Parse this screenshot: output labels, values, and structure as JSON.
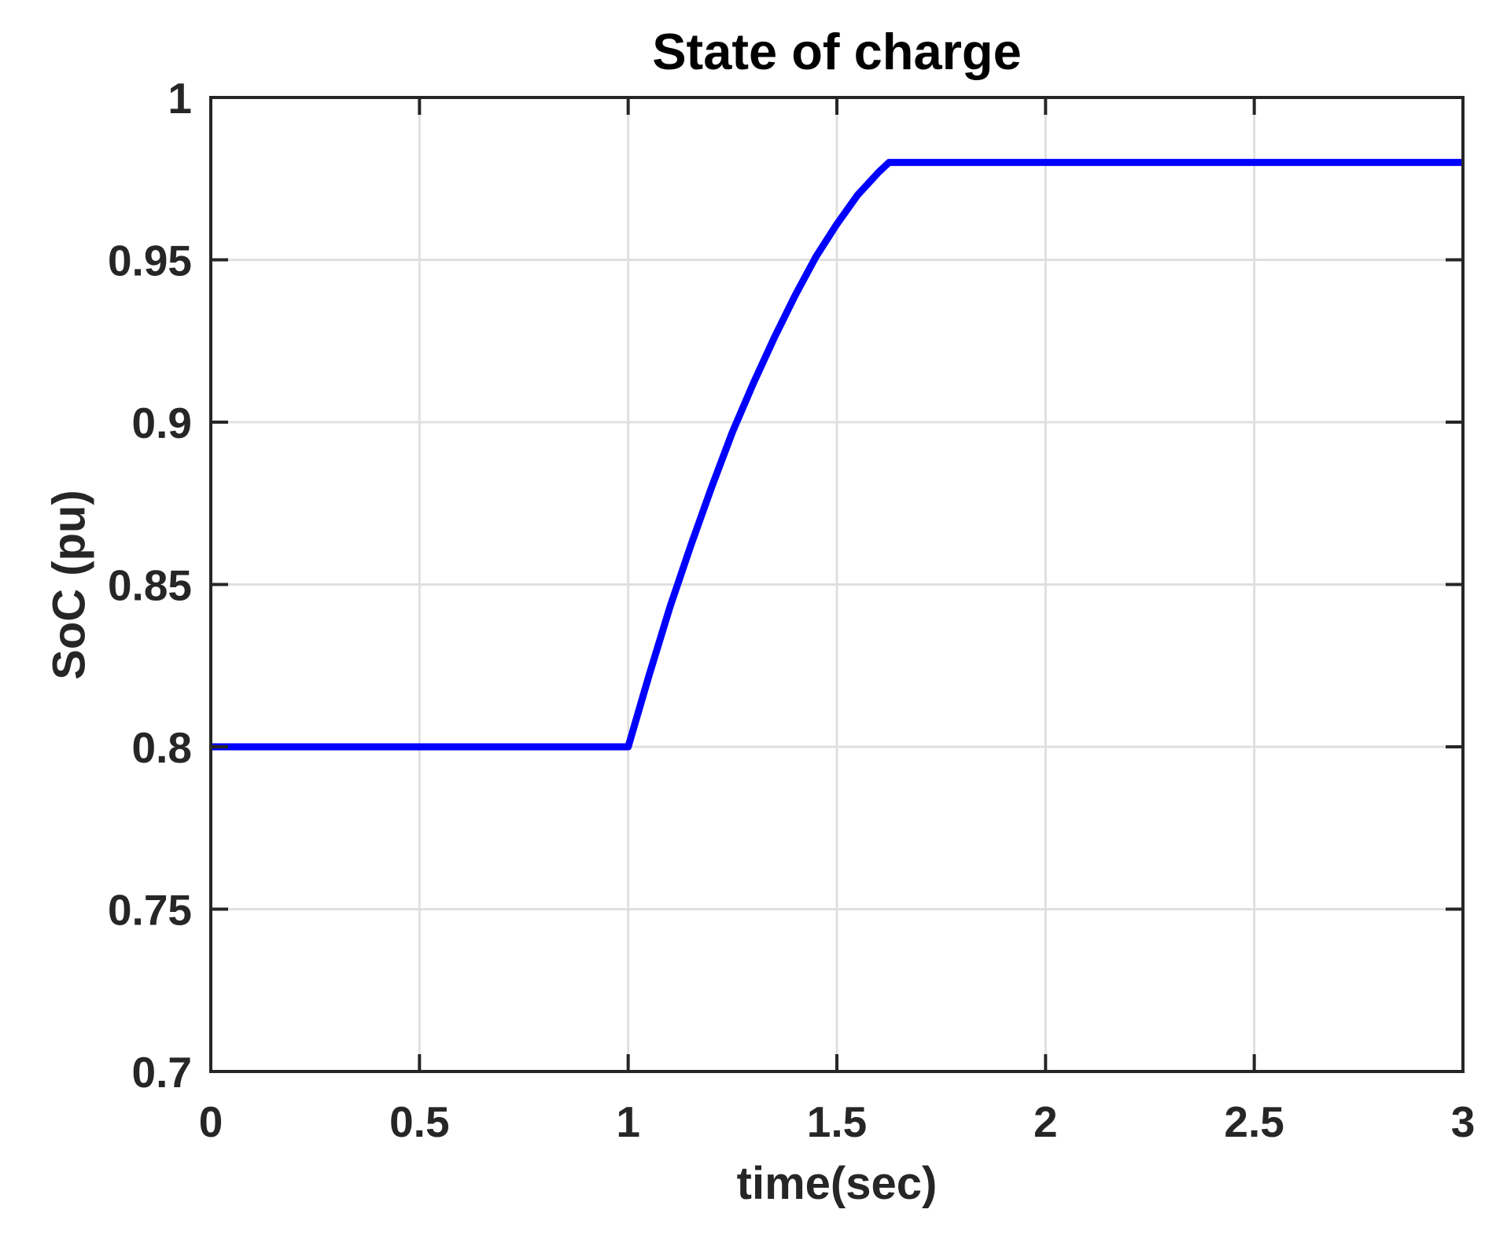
{
  "chart_data": {
    "type": "line",
    "title": "State of charge",
    "xlabel": "time(sec)",
    "ylabel": "SoC (pu)",
    "xlim": [
      0,
      3
    ],
    "ylim": [
      0.7,
      1.0
    ],
    "x_ticks": [
      0,
      0.5,
      1,
      1.5,
      2,
      2.5,
      3
    ],
    "x_tick_labels": [
      "0",
      "0.5",
      "1",
      "1.5",
      "2",
      "2.5",
      "3"
    ],
    "y_ticks": [
      0.7,
      0.75,
      0.8,
      0.85,
      0.9,
      0.95,
      1
    ],
    "y_tick_labels": [
      "0.7",
      "0.75",
      "0.8",
      "0.85",
      "0.9",
      "0.95",
      "1"
    ],
    "grid": true,
    "legend": "none",
    "series": [
      {
        "name": "SoC",
        "color": "#0000ff",
        "points": [
          [
            0.0,
            0.8
          ],
          [
            1.0,
            0.8
          ],
          [
            1.05,
            0.822
          ],
          [
            1.1,
            0.843
          ],
          [
            1.15,
            0.862
          ],
          [
            1.2,
            0.88
          ],
          [
            1.25,
            0.897
          ],
          [
            1.3,
            0.912
          ],
          [
            1.35,
            0.926
          ],
          [
            1.4,
            0.939
          ],
          [
            1.45,
            0.951
          ],
          [
            1.5,
            0.961
          ],
          [
            1.55,
            0.97
          ],
          [
            1.6,
            0.977
          ],
          [
            1.625,
            0.98
          ],
          [
            3.0,
            0.98
          ]
        ]
      }
    ],
    "colors": {
      "line": "#0000ff",
      "grid": "#e0e0e0",
      "axis": "#262626",
      "background": "#ffffff",
      "title_text": "#000000",
      "label_text": "#262626"
    }
  }
}
